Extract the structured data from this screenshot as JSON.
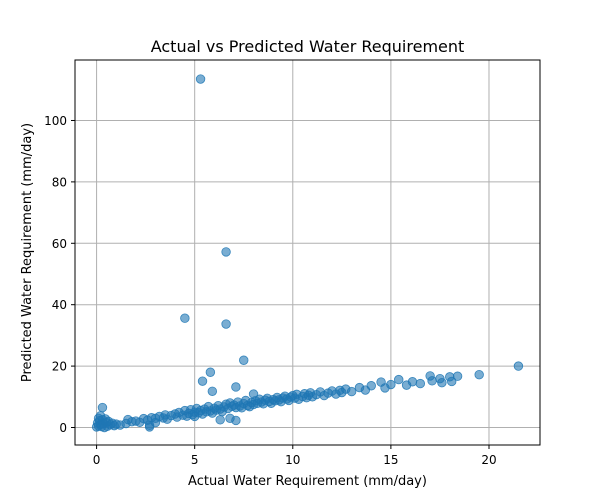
{
  "chart_data": {
    "type": "scatter",
    "title": "Actual vs Predicted Water Requirement",
    "xlabel": "Actual Water Requirement (mm/day)",
    "ylabel": "Predicted Water Requirement (mm/day)",
    "xlim": [
      -1.1,
      22.6
    ],
    "ylim": [
      -5.7,
      119.7
    ],
    "xticks": [
      0,
      5,
      10,
      15,
      20
    ],
    "yticks": [
      0,
      20,
      40,
      60,
      80,
      100
    ],
    "grid": true,
    "marker_color": "#1f77b4",
    "marker_alpha": 0.6,
    "points": [
      [
        0.0,
        0.2
      ],
      [
        0.05,
        1.5
      ],
      [
        0.1,
        3.0
      ],
      [
        0.1,
        0.5
      ],
      [
        0.15,
        2.2
      ],
      [
        0.2,
        3.8
      ],
      [
        0.2,
        1.0
      ],
      [
        0.25,
        0.3
      ],
      [
        0.3,
        2.5
      ],
      [
        0.3,
        6.5
      ],
      [
        0.35,
        1.2
      ],
      [
        0.4,
        0.0
      ],
      [
        0.45,
        2.8
      ],
      [
        0.5,
        1.6
      ],
      [
        0.55,
        0.4
      ],
      [
        0.6,
        2.0
      ],
      [
        0.7,
        0.9
      ],
      [
        0.8,
        1.4
      ],
      [
        0.9,
        0.6
      ],
      [
        1.0,
        1.1
      ],
      [
        1.2,
        0.8
      ],
      [
        1.5,
        1.3
      ],
      [
        1.6,
        2.6
      ],
      [
        1.8,
        1.9
      ],
      [
        2.0,
        2.1
      ],
      [
        2.2,
        1.7
      ],
      [
        2.4,
        2.9
      ],
      [
        2.6,
        2.4
      ],
      [
        2.7,
        0.7
      ],
      [
        2.8,
        3.2
      ],
      [
        3.0,
        3.0
      ],
      [
        3.0,
        1.6
      ],
      [
        3.2,
        3.6
      ],
      [
        3.4,
        3.1
      ],
      [
        3.5,
        4.1
      ],
      [
        3.6,
        2.7
      ],
      [
        3.8,
        3.9
      ],
      [
        4.0,
        4.4
      ],
      [
        4.1,
        3.4
      ],
      [
        4.2,
        4.9
      ],
      [
        4.4,
        4.0
      ],
      [
        4.5,
        5.5
      ],
      [
        4.6,
        3.7
      ],
      [
        4.7,
        4.6
      ],
      [
        4.8,
        5.8
      ],
      [
        4.9,
        4.2
      ],
      [
        5.0,
        5.0
      ],
      [
        5.0,
        3.6
      ],
      [
        5.1,
        6.2
      ],
      [
        5.2,
        4.8
      ],
      [
        5.3,
        5.5
      ],
      [
        5.4,
        4.4
      ],
      [
        5.5,
        6.0
      ],
      [
        5.6,
        5.1
      ],
      [
        5.7,
        6.8
      ],
      [
        5.8,
        5.4
      ],
      [
        5.9,
        4.7
      ],
      [
        6.0,
        6.3
      ],
      [
        6.1,
        5.7
      ],
      [
        6.2,
        7.1
      ],
      [
        6.3,
        6.0
      ],
      [
        6.4,
        5.2
      ],
      [
        6.5,
        6.7
      ],
      [
        6.6,
        7.6
      ],
      [
        6.7,
        6.2
      ],
      [
        6.8,
        8.0
      ],
      [
        6.9,
        6.9
      ],
      [
        7.0,
        7.3
      ],
      [
        7.1,
        6.5
      ],
      [
        7.2,
        8.3
      ],
      [
        7.3,
        7.0
      ],
      [
        7.4,
        6.4
      ],
      [
        7.5,
        7.8
      ],
      [
        7.6,
        8.8
      ],
      [
        7.7,
        7.2
      ],
      [
        7.8,
        6.8
      ],
      [
        7.9,
        8.1
      ],
      [
        8.0,
        7.5
      ],
      [
        8.1,
        8.7
      ],
      [
        8.2,
        7.9
      ],
      [
        8.3,
        9.2
      ],
      [
        8.4,
        8.3
      ],
      [
        8.5,
        7.7
      ],
      [
        8.6,
        8.9
      ],
      [
        8.7,
        9.5
      ],
      [
        8.8,
        8.5
      ],
      [
        8.9,
        7.9
      ],
      [
        9.0,
        9.1
      ],
      [
        9.1,
        8.7
      ],
      [
        9.2,
        9.8
      ],
      [
        9.3,
        9.0
      ],
      [
        9.4,
        8.4
      ],
      [
        9.5,
        9.6
      ],
      [
        9.6,
        10.2
      ],
      [
        9.7,
        9.3
      ],
      [
        9.8,
        8.8
      ],
      [
        9.9,
        9.9
      ],
      [
        10.0,
        10.4
      ],
      [
        10.1,
        9.6
      ],
      [
        10.2,
        10.8
      ],
      [
        10.3,
        9.2
      ],
      [
        10.5,
        10.1
      ],
      [
        10.6,
        11.0
      ],
      [
        10.7,
        9.7
      ],
      [
        10.8,
        10.5
      ],
      [
        10.9,
        11.3
      ],
      [
        11.0,
        10.0
      ],
      [
        11.2,
        10.7
      ],
      [
        11.4,
        11.6
      ],
      [
        11.6,
        10.4
      ],
      [
        11.8,
        11.2
      ],
      [
        12.0,
        11.9
      ],
      [
        12.2,
        10.9
      ],
      [
        12.4,
        12.1
      ],
      [
        12.5,
        11.4
      ],
      [
        12.7,
        12.5
      ],
      [
        13.0,
        11.7
      ],
      [
        13.4,
        13.0
      ],
      [
        13.7,
        12.2
      ],
      [
        14.0,
        13.6
      ],
      [
        14.5,
        14.8
      ],
      [
        14.7,
        12.9
      ],
      [
        15.0,
        14.0
      ],
      [
        15.4,
        15.6
      ],
      [
        15.8,
        13.8
      ],
      [
        16.1,
        14.9
      ],
      [
        16.5,
        14.3
      ],
      [
        17.0,
        16.8
      ],
      [
        17.1,
        15.2
      ],
      [
        17.5,
        15.9
      ],
      [
        17.6,
        14.6
      ],
      [
        18.0,
        16.5
      ],
      [
        18.1,
        15.0
      ],
      [
        18.4,
        16.7
      ],
      [
        19.5,
        17.2
      ],
      [
        21.5,
        20.0
      ],
      [
        5.3,
        113.5
      ],
      [
        6.6,
        57.2
      ],
      [
        4.5,
        35.6
      ],
      [
        6.6,
        33.7
      ],
      [
        7.5,
        21.9
      ],
      [
        5.8,
        18.0
      ],
      [
        5.4,
        15.1
      ],
      [
        7.1,
        13.2
      ],
      [
        5.9,
        11.8
      ],
      [
        8.0,
        10.9
      ],
      [
        6.3,
        2.5
      ],
      [
        7.1,
        2.3
      ],
      [
        6.8,
        3.0
      ],
      [
        2.7,
        0.2
      ]
    ]
  }
}
